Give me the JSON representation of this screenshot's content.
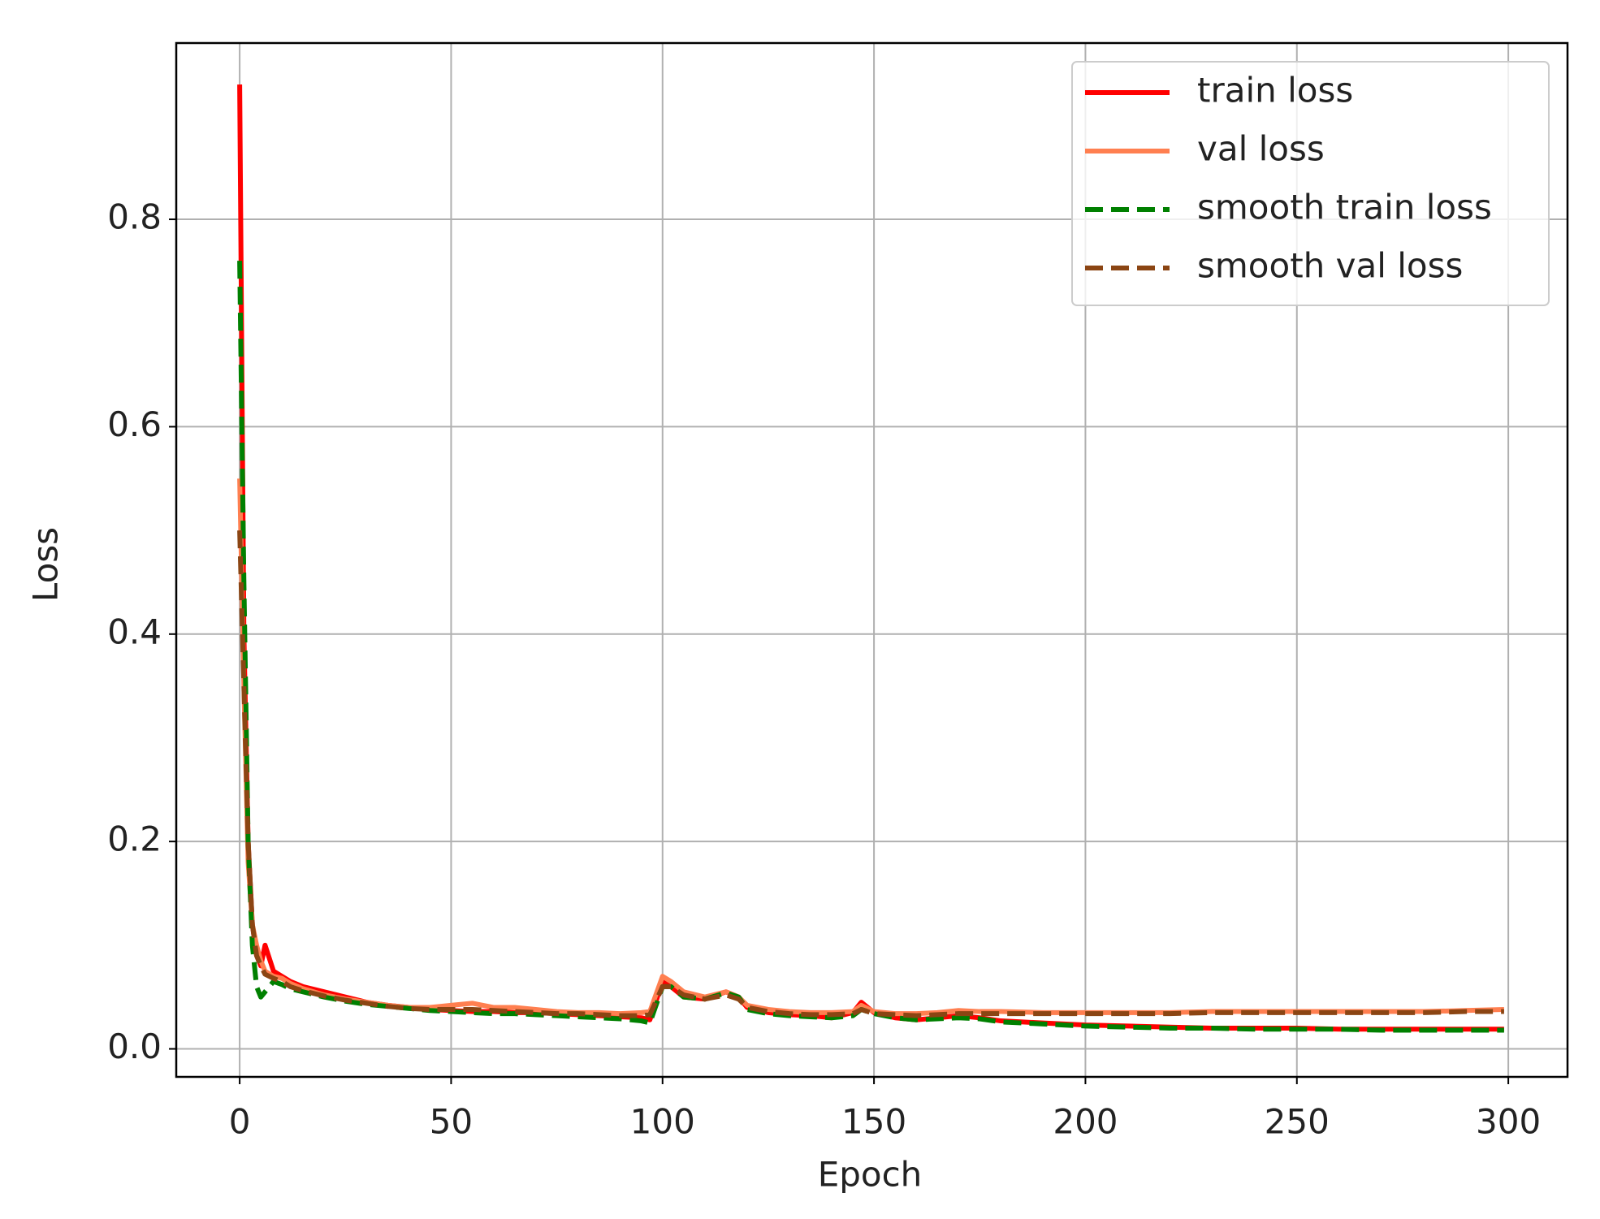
{
  "chart_data": {
    "type": "line",
    "x_label": "Epoch",
    "y_label": "Loss",
    "x": [
      0,
      1,
      2,
      3,
      4,
      5,
      6,
      8,
      10,
      12,
      15,
      20,
      25,
      30,
      35,
      40,
      45,
      50,
      55,
      60,
      65,
      70,
      75,
      80,
      85,
      90,
      95,
      97,
      100,
      102,
      105,
      110,
      115,
      118,
      120,
      125,
      130,
      135,
      140,
      145,
      147,
      150,
      155,
      160,
      165,
      170,
      175,
      180,
      190,
      200,
      210,
      220,
      230,
      240,
      250,
      260,
      270,
      280,
      290,
      299
    ],
    "series": [
      {
        "name": "train loss",
        "color": "#ff0000",
        "linestyle": "solid",
        "values": [
          0.93,
          0.4,
          0.2,
          0.12,
          0.09,
          0.08,
          0.1,
          0.075,
          0.07,
          0.065,
          0.06,
          0.055,
          0.05,
          0.045,
          0.042,
          0.04,
          0.038,
          0.037,
          0.036,
          0.036,
          0.035,
          0.035,
          0.034,
          0.033,
          0.032,
          0.031,
          0.03,
          0.028,
          0.065,
          0.06,
          0.05,
          0.048,
          0.055,
          0.05,
          0.04,
          0.035,
          0.033,
          0.032,
          0.03,
          0.035,
          0.045,
          0.035,
          0.03,
          0.028,
          0.03,
          0.032,
          0.03,
          0.027,
          0.025,
          0.023,
          0.022,
          0.021,
          0.02,
          0.02,
          0.02,
          0.019,
          0.019,
          0.019,
          0.019,
          0.019
        ]
      },
      {
        "name": "val loss",
        "color": "#ff7f50",
        "linestyle": "solid",
        "values": [
          0.55,
          0.35,
          0.18,
          0.12,
          0.1,
          0.085,
          0.075,
          0.07,
          0.068,
          0.063,
          0.058,
          0.052,
          0.048,
          0.045,
          0.042,
          0.04,
          0.04,
          0.042,
          0.044,
          0.04,
          0.04,
          0.038,
          0.036,
          0.035,
          0.035,
          0.034,
          0.035,
          0.036,
          0.07,
          0.065,
          0.055,
          0.05,
          0.055,
          0.05,
          0.042,
          0.038,
          0.036,
          0.035,
          0.035,
          0.036,
          0.042,
          0.036,
          0.034,
          0.034,
          0.035,
          0.037,
          0.036,
          0.036,
          0.035,
          0.035,
          0.035,
          0.035,
          0.036,
          0.036,
          0.036,
          0.036,
          0.036,
          0.036,
          0.037,
          0.038
        ]
      },
      {
        "name": "smooth train loss",
        "color": "#008000",
        "linestyle": "dashed",
        "values": [
          0.76,
          0.45,
          0.2,
          0.1,
          0.06,
          0.05,
          0.055,
          0.065,
          0.062,
          0.058,
          0.055,
          0.05,
          0.046,
          0.043,
          0.041,
          0.039,
          0.037,
          0.036,
          0.035,
          0.034,
          0.034,
          0.033,
          0.032,
          0.031,
          0.03,
          0.029,
          0.027,
          0.025,
          0.06,
          0.06,
          0.05,
          0.048,
          0.054,
          0.05,
          0.038,
          0.034,
          0.032,
          0.031,
          0.03,
          0.032,
          0.038,
          0.034,
          0.03,
          0.028,
          0.029,
          0.03,
          0.029,
          0.026,
          0.024,
          0.022,
          0.021,
          0.02,
          0.02,
          0.019,
          0.019,
          0.019,
          0.018,
          0.018,
          0.018,
          0.018
        ]
      },
      {
        "name": "smooth val loss",
        "color": "#8b4513",
        "linestyle": "dashed",
        "values": [
          0.5,
          0.35,
          0.2,
          0.12,
          0.09,
          0.08,
          0.072,
          0.068,
          0.065,
          0.06,
          0.056,
          0.051,
          0.047,
          0.044,
          0.041,
          0.039,
          0.038,
          0.038,
          0.038,
          0.037,
          0.036,
          0.035,
          0.034,
          0.034,
          0.033,
          0.032,
          0.032,
          0.033,
          0.06,
          0.06,
          0.052,
          0.048,
          0.052,
          0.048,
          0.04,
          0.036,
          0.034,
          0.033,
          0.033,
          0.034,
          0.038,
          0.034,
          0.033,
          0.032,
          0.033,
          0.034,
          0.034,
          0.034,
          0.034,
          0.034,
          0.034,
          0.034,
          0.035,
          0.035,
          0.035,
          0.035,
          0.035,
          0.035,
          0.036,
          0.036
        ]
      }
    ],
    "xlim": [
      -15,
      314
    ],
    "ylim": [
      -0.027,
      0.97
    ],
    "xticks": [
      0,
      50,
      100,
      150,
      200,
      250,
      300
    ],
    "yticks": [
      {
        "value": 0,
        "label": "0.0"
      },
      0.2,
      0.4,
      0.6,
      0.8
    ],
    "grid": true,
    "legend": "upper right"
  }
}
